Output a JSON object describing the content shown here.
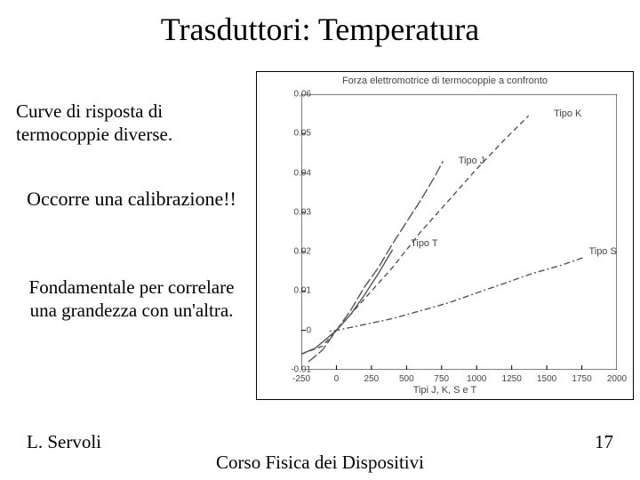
{
  "title": "Trasduttori: Temperatura",
  "subtitle": "Curve di risposta di termocoppie diverse.",
  "callout1": "Occorre una calibrazione!!",
  "callout2": "Fondamentale per correlare una grandezza con un'altra.",
  "footer": {
    "author": "L. Servoli",
    "course": "Corso Fisica dei Dispositivi",
    "page": "17"
  },
  "chart": {
    "type": "line",
    "title_top": "Forza elettromotrice di termocoppie a confronto",
    "xlabel": "Tipi J, K, S e T",
    "background_color": "#ffffff",
    "axis_color": "#000000",
    "tick_font_size": 10,
    "label_font_size": 11,
    "xlim": [
      -250,
      2000
    ],
    "ylim": [
      -0.01,
      0.06
    ],
    "xticks": [
      -250,
      0,
      250,
      500,
      750,
      1000,
      1250,
      1500,
      1750,
      2000
    ],
    "yticks": [
      -0.01,
      0,
      0.01,
      0.02,
      0.03,
      0.04,
      0.05,
      0.06
    ],
    "series": [
      {
        "name": "Tipo K",
        "label": "Tipo K",
        "color": "#555555",
        "dash": "6,4",
        "width": 1.4,
        "label_pos": [
          1550,
          0.055
        ],
        "points": [
          [
            -250,
            -0.006
          ],
          [
            -100,
            -0.004
          ],
          [
            0,
            0.0
          ],
          [
            200,
            0.008
          ],
          [
            400,
            0.016
          ],
          [
            600,
            0.025
          ],
          [
            800,
            0.033
          ],
          [
            1000,
            0.041
          ],
          [
            1200,
            0.0485
          ],
          [
            1370,
            0.0545
          ]
        ]
      },
      {
        "name": "Tipo J",
        "label": "Tipo J",
        "color": "#555555",
        "dash": "12,3",
        "width": 1.4,
        "label_pos": [
          870,
          0.043
        ],
        "points": [
          [
            -200,
            -0.008
          ],
          [
            -100,
            -0.005
          ],
          [
            0,
            0.0
          ],
          [
            100,
            0.005
          ],
          [
            200,
            0.011
          ],
          [
            300,
            0.016
          ],
          [
            400,
            0.022
          ],
          [
            500,
            0.0275
          ],
          [
            600,
            0.033
          ],
          [
            700,
            0.039
          ],
          [
            760,
            0.043
          ]
        ]
      },
      {
        "name": "Tipo T",
        "label": "Tipo T",
        "color": "#555555",
        "dash": "none",
        "width": 1.4,
        "label_pos": [
          530,
          0.022
        ],
        "points": [
          [
            -250,
            -0.006
          ],
          [
            -150,
            -0.0045
          ],
          [
            0,
            0.0
          ],
          [
            100,
            0.004
          ],
          [
            200,
            0.009
          ],
          [
            300,
            0.0145
          ],
          [
            400,
            0.0205
          ]
        ]
      },
      {
        "name": "Tipo S",
        "label": "Tipo S",
        "color": "#555555",
        "dash": "2,3,7,3",
        "width": 1.4,
        "label_pos": [
          1800,
          0.02
        ],
        "points": [
          [
            -50,
            -0.0002
          ],
          [
            0,
            0.0
          ],
          [
            200,
            0.0015
          ],
          [
            400,
            0.003
          ],
          [
            600,
            0.005
          ],
          [
            800,
            0.007
          ],
          [
            1000,
            0.0095
          ],
          [
            1200,
            0.012
          ],
          [
            1400,
            0.0145
          ],
          [
            1600,
            0.0165
          ],
          [
            1760,
            0.0185
          ]
        ]
      }
    ]
  }
}
